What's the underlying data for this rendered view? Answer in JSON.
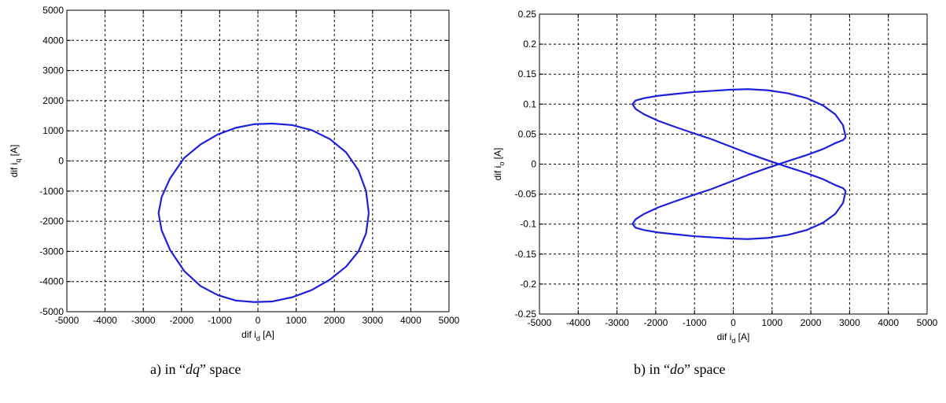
{
  "chart_data": [
    {
      "type": "line",
      "xlabel": "dif i",
      "xlabel_sub": "d",
      "xlabel_unit": "[A]",
      "ylabel": "dif i",
      "ylabel_sub": "q",
      "ylabel_unit": "[A]",
      "xlim": [
        -5000,
        5000
      ],
      "ylim": [
        -5000,
        5000
      ],
      "xticks": [
        -5000,
        -4000,
        -3000,
        -2000,
        -1000,
        0,
        1000,
        2000,
        3000,
        4000,
        5000
      ],
      "yticks": [
        -5000,
        -4000,
        -3000,
        -2000,
        -1000,
        0,
        1000,
        2000,
        3000,
        4000,
        5000
      ],
      "xtick_labels": [
        "-5000",
        "-4000",
        "-3000",
        "-2000",
        "-1000",
        "0",
        "1000",
        "2000",
        "3000",
        "4000",
        "5000"
      ],
      "ytick_labels": [
        "-5000",
        "-4000",
        "-3000",
        "-2000",
        "-1000",
        "0",
        "1000",
        "2000",
        "3000",
        "4000",
        "5000"
      ],
      "grid": true,
      "grid_style": "dashed",
      "line_color": "#1f1fdc",
      "series": [
        {
          "x": [
            2900,
            2830,
            2630,
            2310,
            1890,
            1410,
            900,
            380,
            -100,
            -580,
            -1050,
            -1500,
            -1930,
            -2300,
            -2520,
            -2600,
            -2520,
            -2300,
            -1930,
            -1500,
            -1050,
            -580,
            -100,
            380,
            900,
            1410,
            1890,
            2310,
            2630,
            2830,
            2900
          ],
          "y": [
            -1730,
            -1000,
            -310,
            280,
            720,
            1020,
            1190,
            1240,
            1220,
            1100,
            880,
            550,
            100,
            -580,
            -1200,
            -1730,
            -2300,
            -2950,
            -3650,
            -4150,
            -4450,
            -4630,
            -4680,
            -4660,
            -4520,
            -4280,
            -3930,
            -3500,
            -3000,
            -2400,
            -1730
          ]
        }
      ],
      "caption_prefix": "a) in “",
      "caption_em": "dq",
      "caption_suffix": "” space"
    },
    {
      "type": "line",
      "xlabel": "dif i",
      "xlabel_sub": "d",
      "xlabel_unit": "[A]",
      "ylabel": "dif i",
      "ylabel_sub": "o",
      "ylabel_unit": "[A]",
      "xlim": [
        -5000,
        5000
      ],
      "ylim": [
        -0.25,
        0.25
      ],
      "xticks": [
        -5000,
        -4000,
        -3000,
        -2000,
        -1000,
        0,
        1000,
        2000,
        3000,
        4000,
        5000
      ],
      "yticks": [
        -0.25,
        -0.2,
        -0.15,
        -0.1,
        -0.05,
        0,
        0.05,
        0.1,
        0.15,
        0.2,
        0.25
      ],
      "xtick_labels": [
        "-5000",
        "-4000",
        "-3000",
        "-2000",
        "-1000",
        "0",
        "1000",
        "2000",
        "3000",
        "4000",
        "5000"
      ],
      "ytick_labels": [
        "-0.25",
        "-0.2",
        "-0.15",
        "-0.1",
        "-0.05",
        "0",
        "0.05",
        "0.1",
        "0.15",
        "0.2",
        "0.25"
      ],
      "grid": true,
      "grid_style": "dashed",
      "line_color": "#1f1fdc",
      "series": [
        {
          "x": [
            2900,
            2830,
            2630,
            2310,
            1890,
            1410,
            900,
            380,
            -100,
            -580,
            -1050,
            -1500,
            -1930,
            -2300,
            -2520,
            -2600,
            -2520,
            -2300,
            -1930,
            -1500,
            -1050,
            -580,
            -100,
            380,
            900,
            1410,
            1890,
            2310,
            2630,
            2830,
            2900
          ],
          "y": [
            0.045,
            0.065,
            0.083,
            0.098,
            0.11,
            0.118,
            0.123,
            0.125,
            0.124,
            0.122,
            0.12,
            0.117,
            0.114,
            0.11,
            0.106,
            0.1,
            0.092,
            0.083,
            0.072,
            0.062,
            0.052,
            0.042,
            0.03,
            0.018,
            0.006,
            -0.005,
            -0.015,
            -0.025,
            -0.035,
            -0.04,
            -0.045
          ]
        },
        {
          "x": [
            2900,
            2830,
            2630,
            2310,
            1890,
            1410,
            900,
            380,
            -100,
            -580,
            -1050,
            -1500,
            -1930,
            -2300,
            -2520,
            -2600,
            -2520,
            -2300,
            -1930,
            -1500,
            -1050,
            -580,
            -100,
            380,
            900,
            1410,
            1890,
            2310,
            2630,
            2830,
            2900
          ],
          "y": [
            -0.045,
            -0.065,
            -0.083,
            -0.098,
            -0.11,
            -0.118,
            -0.123,
            -0.125,
            -0.124,
            -0.122,
            -0.12,
            -0.117,
            -0.114,
            -0.11,
            -0.106,
            -0.1,
            -0.092,
            -0.083,
            -0.072,
            -0.062,
            -0.052,
            -0.042,
            -0.03,
            -0.018,
            -0.006,
            0.005,
            0.015,
            0.025,
            0.035,
            0.04,
            0.045
          ]
        }
      ],
      "caption_prefix": "b) in “",
      "caption_em": "do",
      "caption_suffix": "” space"
    }
  ]
}
